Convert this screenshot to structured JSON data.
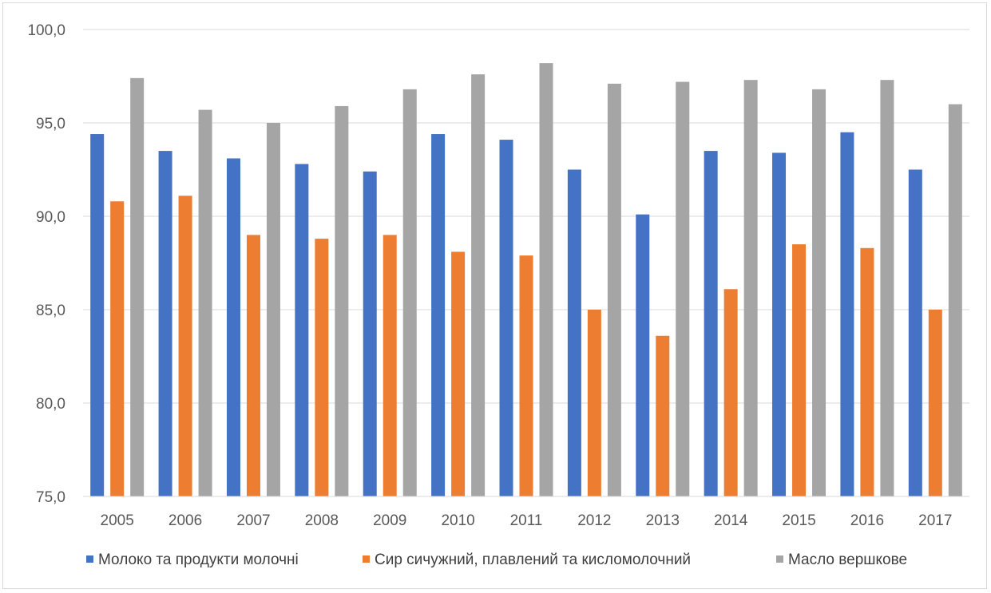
{
  "chart_data": {
    "type": "bar",
    "title": "",
    "xlabel": "",
    "ylabel": "",
    "categories": [
      "2005",
      "2006",
      "2007",
      "2008",
      "2009",
      "2010",
      "2011",
      "2012",
      "2013",
      "2014",
      "2015",
      "2016",
      "2017"
    ],
    "series": [
      {
        "name": "Молоко та продукти молочні",
        "color": "#4472c4",
        "values": [
          94.4,
          93.5,
          93.1,
          92.8,
          92.4,
          94.4,
          94.1,
          92.5,
          90.1,
          93.5,
          93.4,
          94.5,
          92.5
        ]
      },
      {
        "name": "Сир сичужний, плавлений та кисломолочний",
        "color": "#ed7d31",
        "values": [
          90.8,
          91.1,
          89.0,
          88.8,
          89.0,
          88.1,
          87.9,
          85.0,
          83.6,
          86.1,
          88.5,
          88.3,
          85.0
        ]
      },
      {
        "name": "Масло вершкове",
        "color": "#a5a5a5",
        "values": [
          97.4,
          95.7,
          95.0,
          95.9,
          96.8,
          97.6,
          98.2,
          97.1,
          97.2,
          97.3,
          96.8,
          97.3,
          96.0
        ]
      }
    ],
    "ylim": [
      75,
      100
    ],
    "yticks": [
      "75,0",
      "80,0",
      "85,0",
      "90,0",
      "95,0",
      "100,0"
    ],
    "grid": true,
    "legend_position": "bottom"
  }
}
